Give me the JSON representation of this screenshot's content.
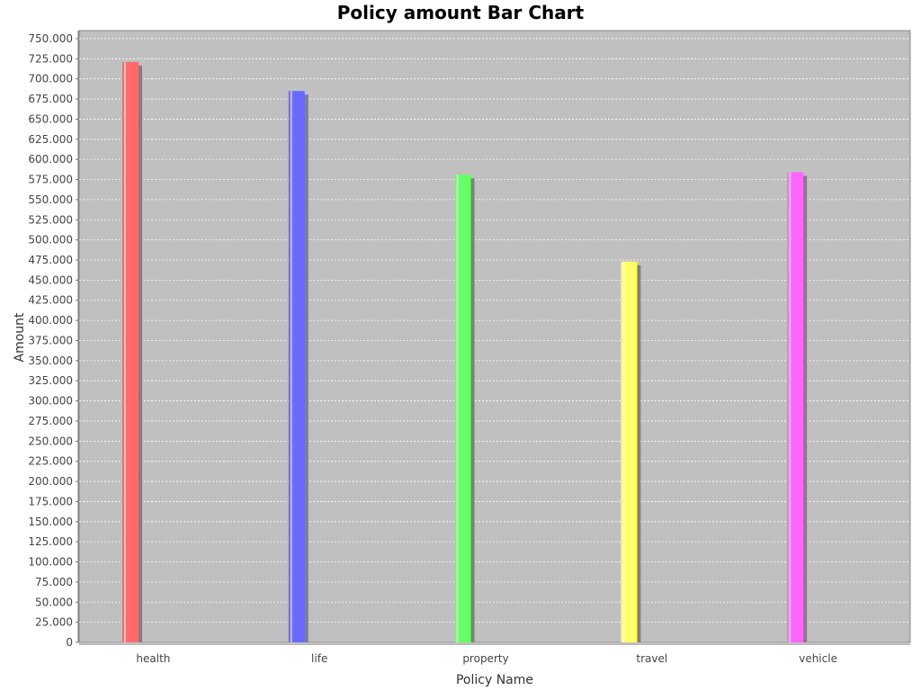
{
  "chart_data": {
    "type": "bar",
    "title": "Policy amount Bar Chart",
    "xlabel": "Policy Name",
    "ylabel": "Amount",
    "categories": [
      "health",
      "life",
      "property",
      "travel",
      "vehicle"
    ],
    "values": [
      721000,
      685000,
      581000,
      473000,
      584000
    ],
    "colors": [
      "#ff6b6b",
      "#6a6aff",
      "#66ff66",
      "#ffff66",
      "#ff66ff"
    ],
    "ylim": [
      0,
      760000
    ],
    "yticks": [
      {
        "value": 0,
        "label": "0"
      },
      {
        "value": 25000,
        "label": "25.000"
      },
      {
        "value": 50000,
        "label": "50.000"
      },
      {
        "value": 75000,
        "label": "75.000"
      },
      {
        "value": 100000,
        "label": "100.000"
      },
      {
        "value": 125000,
        "label": "125.000"
      },
      {
        "value": 150000,
        "label": "150.000"
      },
      {
        "value": 175000,
        "label": "175.000"
      },
      {
        "value": 200000,
        "label": "200.000"
      },
      {
        "value": 225000,
        "label": "225.000"
      },
      {
        "value": 250000,
        "label": "250.000"
      },
      {
        "value": 275000,
        "label": "275.000"
      },
      {
        "value": 300000,
        "label": "300.000"
      },
      {
        "value": 325000,
        "label": "325.000"
      },
      {
        "value": 350000,
        "label": "350.000"
      },
      {
        "value": 375000,
        "label": "375.000"
      },
      {
        "value": 400000,
        "label": "400.000"
      },
      {
        "value": 425000,
        "label": "425.000"
      },
      {
        "value": 450000,
        "label": "450.000"
      },
      {
        "value": 475000,
        "label": "475.000"
      },
      {
        "value": 500000,
        "label": "500.000"
      },
      {
        "value": 525000,
        "label": "525.000"
      },
      {
        "value": 550000,
        "label": "550.000"
      },
      {
        "value": 575000,
        "label": "575.000"
      },
      {
        "value": 600000,
        "label": "600.000"
      },
      {
        "value": 625000,
        "label": "625.000"
      },
      {
        "value": 650000,
        "label": "650.000"
      },
      {
        "value": 675000,
        "label": "675.000"
      },
      {
        "value": 700000,
        "label": "700.000"
      },
      {
        "value": 725000,
        "label": "725.000"
      },
      {
        "value": 750000,
        "label": "750.000"
      }
    ],
    "grid": true,
    "legend": "none",
    "plot_background": "#c0c0c0",
    "grid_color": "#ffffff"
  }
}
